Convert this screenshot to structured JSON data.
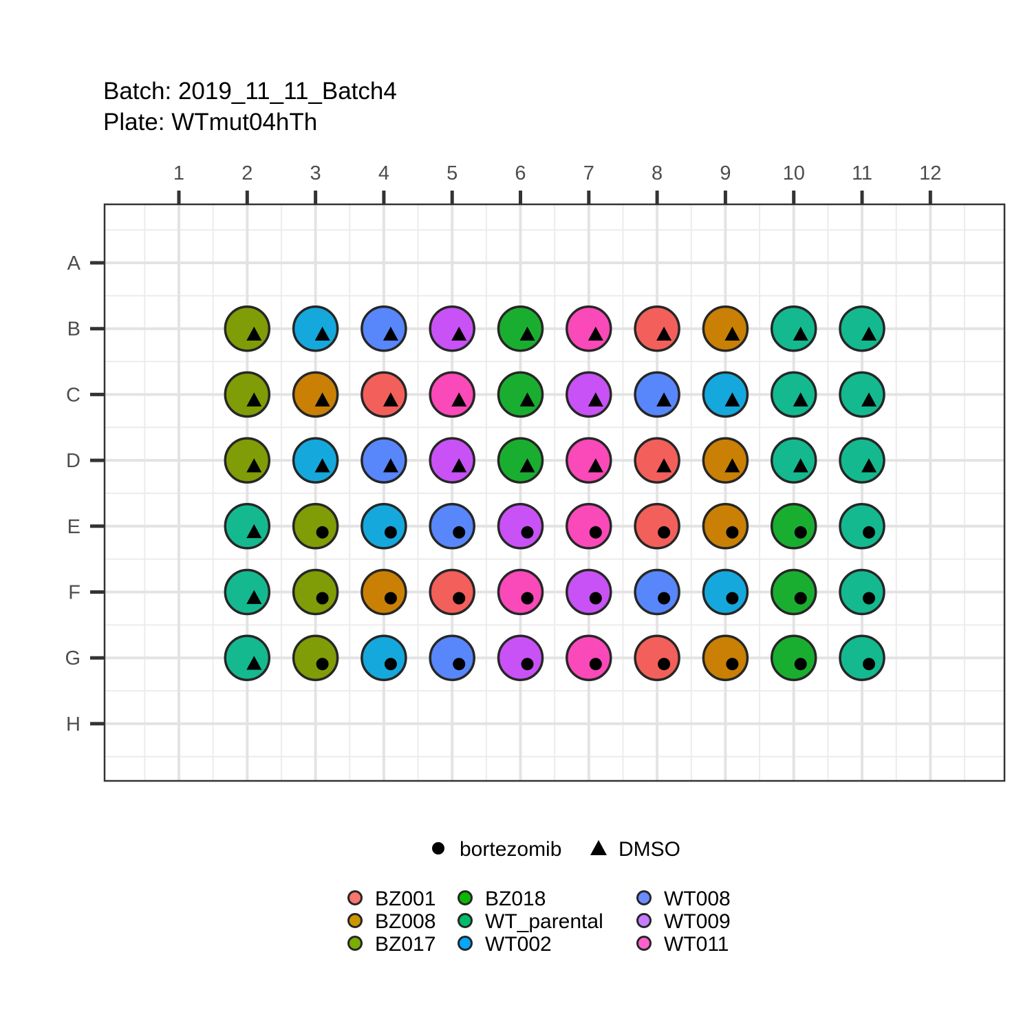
{
  "chart_data": {
    "type": "scatter",
    "title": "Batch: 2019_11_11_Batch4",
    "subtitle": "Plate: WTmut04hTh",
    "x_ticks": [
      "1",
      "2",
      "3",
      "4",
      "5",
      "6",
      "7",
      "8",
      "9",
      "10",
      "11",
      "12"
    ],
    "y_ticks": [
      "A",
      "B",
      "C",
      "D",
      "E",
      "F",
      "G",
      "H"
    ],
    "grid": true,
    "legend_position": "bottom",
    "shape_legend": [
      {
        "label": "bortezomib",
        "shape": "circle"
      },
      {
        "label": "DMSO",
        "shape": "triangle"
      }
    ],
    "fill_legend": [
      {
        "label": "BZ001",
        "color": "#F8766D"
      },
      {
        "label": "BZ008",
        "color": "#CD9600"
      },
      {
        "label": "BZ017",
        "color": "#7CAE00"
      },
      {
        "label": "BZ018",
        "color": "#0CB702"
      },
      {
        "label": "WT_parental",
        "color": "#00BE67"
      },
      {
        "label": "WT002",
        "color": "#00A9FF"
      },
      {
        "label": "WT008",
        "color": "#6B8CFF"
      },
      {
        "label": "WT009",
        "color": "#C77CFF"
      },
      {
        "label": "WT011",
        "color": "#FF61CC"
      }
    ],
    "colors": {
      "BZ001": "#F35F5A",
      "BZ008": "#C98005",
      "BZ017": "#809C07",
      "BZ018": "#1AAE30",
      "WT_parental": "#14B98F",
      "WT002": "#15A8DC",
      "WT008": "#5886FB",
      "WT009": "#C852F5",
      "WT011": "#FA49B8"
    },
    "wells": [
      {
        "row": "B",
        "col": 2,
        "sample": "BZ017",
        "treatment": "DMSO"
      },
      {
        "row": "B",
        "col": 3,
        "sample": "WT002",
        "treatment": "DMSO"
      },
      {
        "row": "B",
        "col": 4,
        "sample": "WT008",
        "treatment": "DMSO"
      },
      {
        "row": "B",
        "col": 5,
        "sample": "WT009",
        "treatment": "DMSO"
      },
      {
        "row": "B",
        "col": 6,
        "sample": "BZ018",
        "treatment": "DMSO"
      },
      {
        "row": "B",
        "col": 7,
        "sample": "WT011",
        "treatment": "DMSO"
      },
      {
        "row": "B",
        "col": 8,
        "sample": "BZ001",
        "treatment": "DMSO"
      },
      {
        "row": "B",
        "col": 9,
        "sample": "BZ008",
        "treatment": "DMSO"
      },
      {
        "row": "B",
        "col": 10,
        "sample": "WT_parental",
        "treatment": "DMSO"
      },
      {
        "row": "B",
        "col": 11,
        "sample": "WT_parental",
        "treatment": "DMSO"
      },
      {
        "row": "C",
        "col": 2,
        "sample": "BZ017",
        "treatment": "DMSO"
      },
      {
        "row": "C",
        "col": 3,
        "sample": "BZ008",
        "treatment": "DMSO"
      },
      {
        "row": "C",
        "col": 4,
        "sample": "BZ001",
        "treatment": "DMSO"
      },
      {
        "row": "C",
        "col": 5,
        "sample": "WT011",
        "treatment": "DMSO"
      },
      {
        "row": "C",
        "col": 6,
        "sample": "BZ018",
        "treatment": "DMSO"
      },
      {
        "row": "C",
        "col": 7,
        "sample": "WT009",
        "treatment": "DMSO"
      },
      {
        "row": "C",
        "col": 8,
        "sample": "WT008",
        "treatment": "DMSO"
      },
      {
        "row": "C",
        "col": 9,
        "sample": "WT002",
        "treatment": "DMSO"
      },
      {
        "row": "C",
        "col": 10,
        "sample": "WT_parental",
        "treatment": "DMSO"
      },
      {
        "row": "C",
        "col": 11,
        "sample": "WT_parental",
        "treatment": "DMSO"
      },
      {
        "row": "D",
        "col": 2,
        "sample": "BZ017",
        "treatment": "DMSO"
      },
      {
        "row": "D",
        "col": 3,
        "sample": "WT002",
        "treatment": "DMSO"
      },
      {
        "row": "D",
        "col": 4,
        "sample": "WT008",
        "treatment": "DMSO"
      },
      {
        "row": "D",
        "col": 5,
        "sample": "WT009",
        "treatment": "DMSO"
      },
      {
        "row": "D",
        "col": 6,
        "sample": "BZ018",
        "treatment": "DMSO"
      },
      {
        "row": "D",
        "col": 7,
        "sample": "WT011",
        "treatment": "DMSO"
      },
      {
        "row": "D",
        "col": 8,
        "sample": "BZ001",
        "treatment": "DMSO"
      },
      {
        "row": "D",
        "col": 9,
        "sample": "BZ008",
        "treatment": "DMSO"
      },
      {
        "row": "D",
        "col": 10,
        "sample": "WT_parental",
        "treatment": "DMSO"
      },
      {
        "row": "D",
        "col": 11,
        "sample": "WT_parental",
        "treatment": "DMSO"
      },
      {
        "row": "E",
        "col": 2,
        "sample": "WT_parental",
        "treatment": "DMSO"
      },
      {
        "row": "E",
        "col": 3,
        "sample": "BZ017",
        "treatment": "bortezomib"
      },
      {
        "row": "E",
        "col": 4,
        "sample": "WT002",
        "treatment": "bortezomib"
      },
      {
        "row": "E",
        "col": 5,
        "sample": "WT008",
        "treatment": "bortezomib"
      },
      {
        "row": "E",
        "col": 6,
        "sample": "WT009",
        "treatment": "bortezomib"
      },
      {
        "row": "E",
        "col": 7,
        "sample": "WT011",
        "treatment": "bortezomib"
      },
      {
        "row": "E",
        "col": 8,
        "sample": "BZ001",
        "treatment": "bortezomib"
      },
      {
        "row": "E",
        "col": 9,
        "sample": "BZ008",
        "treatment": "bortezomib"
      },
      {
        "row": "E",
        "col": 10,
        "sample": "BZ018",
        "treatment": "bortezomib"
      },
      {
        "row": "E",
        "col": 11,
        "sample": "WT_parental",
        "treatment": "bortezomib"
      },
      {
        "row": "F",
        "col": 2,
        "sample": "WT_parental",
        "treatment": "DMSO"
      },
      {
        "row": "F",
        "col": 3,
        "sample": "BZ017",
        "treatment": "bortezomib"
      },
      {
        "row": "F",
        "col": 4,
        "sample": "BZ008",
        "treatment": "bortezomib"
      },
      {
        "row": "F",
        "col": 5,
        "sample": "BZ001",
        "treatment": "bortezomib"
      },
      {
        "row": "F",
        "col": 6,
        "sample": "WT011",
        "treatment": "bortezomib"
      },
      {
        "row": "F",
        "col": 7,
        "sample": "WT009",
        "treatment": "bortezomib"
      },
      {
        "row": "F",
        "col": 8,
        "sample": "WT008",
        "treatment": "bortezomib"
      },
      {
        "row": "F",
        "col": 9,
        "sample": "WT002",
        "treatment": "bortezomib"
      },
      {
        "row": "F",
        "col": 10,
        "sample": "BZ018",
        "treatment": "bortezomib"
      },
      {
        "row": "F",
        "col": 11,
        "sample": "WT_parental",
        "treatment": "bortezomib"
      },
      {
        "row": "G",
        "col": 2,
        "sample": "WT_parental",
        "treatment": "DMSO"
      },
      {
        "row": "G",
        "col": 3,
        "sample": "BZ017",
        "treatment": "bortezomib"
      },
      {
        "row": "G",
        "col": 4,
        "sample": "WT002",
        "treatment": "bortezomib"
      },
      {
        "row": "G",
        "col": 5,
        "sample": "WT008",
        "treatment": "bortezomib"
      },
      {
        "row": "G",
        "col": 6,
        "sample": "WT009",
        "treatment": "bortezomib"
      },
      {
        "row": "G",
        "col": 7,
        "sample": "WT011",
        "treatment": "bortezomib"
      },
      {
        "row": "G",
        "col": 8,
        "sample": "BZ001",
        "treatment": "bortezomib"
      },
      {
        "row": "G",
        "col": 9,
        "sample": "BZ008",
        "treatment": "bortezomib"
      },
      {
        "row": "G",
        "col": 10,
        "sample": "BZ018",
        "treatment": "bortezomib"
      },
      {
        "row": "G",
        "col": 11,
        "sample": "WT_parental",
        "treatment": "bortezomib"
      }
    ]
  }
}
